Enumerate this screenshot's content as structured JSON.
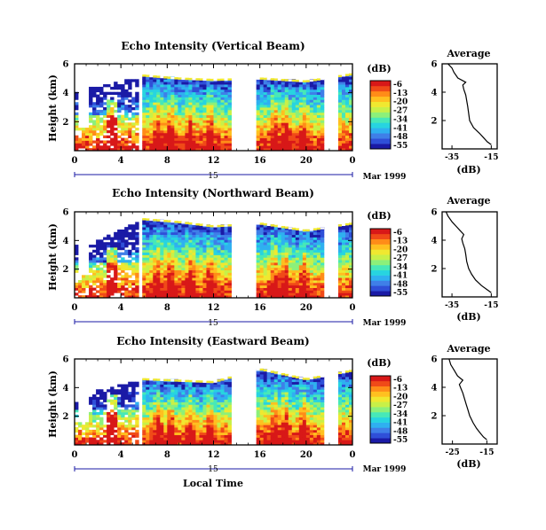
{
  "figure": {
    "xlabel": "Local Time",
    "date_label": "Mar 1999",
    "day_label": "15",
    "colorbar_unit": "(dB)",
    "avg_xlabel": "(dB)",
    "avg_title": "Average"
  },
  "colormap": [
    "#1a1aa6",
    "#2f4fd8",
    "#3f7fe8",
    "#2fb0f0",
    "#27d4e0",
    "#47e8b8",
    "#8cf07a",
    "#c8f048",
    "#f0e830",
    "#ffc020",
    "#ff8c18",
    "#f04a18",
    "#d81818"
  ],
  "chart_data": [
    {
      "type": "heatmap",
      "title": "Echo Intensity (Vertical Beam)",
      "xlabel": "Local Time",
      "ylabel": "Height (km)",
      "x_ticks": [
        "0",
        "4",
        "8",
        "12",
        "16",
        "20",
        "0"
      ],
      "y_ticks": [
        "2",
        "4",
        "6"
      ],
      "xlim": [
        0,
        24
      ],
      "ylim": [
        0,
        6
      ],
      "colorbar": {
        "label": "(dB)",
        "ticks": [
          "-6",
          "-13",
          "-20",
          "-27",
          "-34",
          "-41",
          "-48",
          "-55"
        ],
        "range": [
          -55,
          -6
        ]
      },
      "cloud_top_km": [
        4.3,
        4.4,
        5.2,
        5.0,
        4.9,
        5.0,
        4.8,
        5.3
      ],
      "cloud_top_hours": [
        0,
        2,
        6,
        9,
        12,
        16,
        20,
        24
      ]
    },
    {
      "type": "heatmap",
      "title": "Echo Intensity (Northward Beam)",
      "xlabel": "Local Time",
      "ylabel": "Height (km)",
      "x_ticks": [
        "0",
        "4",
        "8",
        "12",
        "16",
        "20",
        "0"
      ],
      "y_ticks": [
        "2",
        "4",
        "6"
      ],
      "xlim": [
        0,
        24
      ],
      "ylim": [
        0,
        6
      ],
      "colorbar": {
        "label": "(dB)",
        "ticks": [
          "-6",
          "-13",
          "-20",
          "-27",
          "-34",
          "-41",
          "-48",
          "-55"
        ],
        "range": [
          -55,
          -6
        ]
      },
      "cloud_top_km": [
        3.6,
        4.0,
        5.5,
        5.3,
        5.0,
        5.2,
        4.7,
        5.2
      ],
      "cloud_top_hours": [
        0,
        2,
        6,
        9,
        12,
        16,
        20,
        24
      ]
    },
    {
      "type": "heatmap",
      "title": "Echo Intensity (Eastward Beam)",
      "xlabel": "Local Time",
      "ylabel": "Height (km)",
      "x_ticks": [
        "0",
        "4",
        "8",
        "12",
        "16",
        "20",
        "0"
      ],
      "y_ticks": [
        "2",
        "4",
        "6"
      ],
      "xlim": [
        0,
        24
      ],
      "ylim": [
        0,
        6
      ],
      "colorbar": {
        "label": "(dB)",
        "ticks": [
          "-6",
          "-13",
          "-20",
          "-27",
          "-34",
          "-41",
          "-48",
          "-55"
        ],
        "range": [
          -55,
          -6
        ]
      },
      "cloud_top_km": [
        3.0,
        3.8,
        4.6,
        4.5,
        4.4,
        5.3,
        4.6,
        5.2
      ],
      "cloud_top_hours": [
        0,
        2,
        6,
        9,
        12,
        16,
        20,
        24
      ]
    },
    {
      "type": "line",
      "title": "Average",
      "xlabel": "(dB)",
      "x_ticks": [
        "-35",
        "-15"
      ],
      "y_ticks": [
        "2",
        "4",
        "6"
      ],
      "xlim": [
        -40,
        -12
      ],
      "ylim": [
        0,
        6
      ],
      "x": [
        -15,
        -17,
        -19,
        -21,
        -24,
        -26,
        -26.5,
        -27,
        -27.5,
        -28,
        -28.5,
        -29,
        -29.5,
        -28,
        -32,
        -34,
        -35,
        -37
      ],
      "y": [
        0.3,
        0.5,
        0.8,
        1.1,
        1.5,
        2.0,
        2.5,
        3.0,
        3.4,
        3.8,
        4.0,
        4.2,
        4.5,
        4.7,
        5.0,
        5.4,
        5.7,
        6.0
      ]
    },
    {
      "type": "line",
      "title": "Average",
      "xlabel": "(dB)",
      "x_ticks": [
        "-35",
        "-15"
      ],
      "y_ticks": [
        "2",
        "4",
        "6"
      ],
      "xlim": [
        -40,
        -12
      ],
      "ylim": [
        0,
        6
      ],
      "x": [
        -15,
        -17,
        -20,
        -23,
        -25,
        -26.5,
        -27.5,
        -28,
        -28.5,
        -29.5,
        -30,
        -29,
        -31,
        -33,
        -35,
        -37,
        -38
      ],
      "y": [
        0.3,
        0.5,
        0.8,
        1.2,
        1.6,
        2.0,
        2.5,
        3.0,
        3.4,
        3.8,
        4.1,
        4.4,
        4.7,
        5.0,
        5.3,
        5.7,
        6.0
      ]
    },
    {
      "type": "line",
      "title": "Average",
      "xlabel": "(dB)",
      "x_ticks": [
        "-25",
        "-15"
      ],
      "y_ticks": [
        "2",
        "4",
        "6"
      ],
      "xlim": [
        -28,
        -12
      ],
      "ylim": [
        0,
        6
      ],
      "x": [
        -15,
        -16,
        -17,
        -18,
        -19,
        -20,
        -20.5,
        -21,
        -21.5,
        -22,
        -22.5,
        -23,
        -22,
        -23.5,
        -24.5,
        -25.5,
        -26
      ],
      "y": [
        0.3,
        0.5,
        0.8,
        1.1,
        1.5,
        2.0,
        2.4,
        2.8,
        3.2,
        3.6,
        3.9,
        4.2,
        4.5,
        4.8,
        5.2,
        5.6,
        6.0
      ]
    }
  ]
}
